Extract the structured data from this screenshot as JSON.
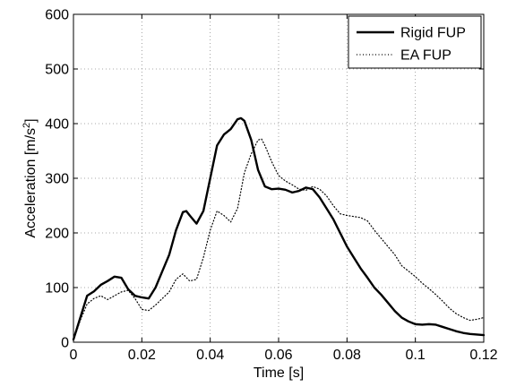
{
  "chart_data": {
    "type": "line",
    "xlabel": "Time [s]",
    "ylabel_main": "Acceleration [m/s",
    "ylabel_sup": "2",
    "ylabel_close": "]",
    "xlim": [
      0,
      0.12
    ],
    "ylim": [
      0,
      600
    ],
    "x_ticks": [
      0,
      0.02,
      0.04,
      0.06,
      0.08,
      0.1,
      0.12
    ],
    "x_tick_labels": [
      "0",
      "0.02",
      "0.04",
      "0.06",
      "0.08",
      "0.1",
      "0.12"
    ],
    "y_ticks": [
      0,
      100,
      200,
      300,
      400,
      500,
      600
    ],
    "y_tick_labels": [
      "0",
      "100",
      "200",
      "300",
      "400",
      "500",
      "600"
    ],
    "grid": true,
    "legend_position": "top-right",
    "series": [
      {
        "name": "Rigid FUP",
        "style": "solid",
        "color": "#000000",
        "x": [
          0,
          0.002,
          0.004,
          0.006,
          0.008,
          0.01,
          0.012,
          0.014,
          0.016,
          0.018,
          0.02,
          0.022,
          0.024,
          0.026,
          0.028,
          0.03,
          0.032,
          0.033,
          0.034,
          0.036,
          0.038,
          0.04,
          0.042,
          0.044,
          0.046,
          0.048,
          0.049,
          0.05,
          0.052,
          0.054,
          0.056,
          0.058,
          0.06,
          0.062,
          0.064,
          0.066,
          0.068,
          0.07,
          0.072,
          0.074,
          0.076,
          0.078,
          0.08,
          0.082,
          0.084,
          0.086,
          0.088,
          0.09,
          0.092,
          0.094,
          0.096,
          0.098,
          0.1,
          0.102,
          0.104,
          0.106,
          0.108,
          0.11,
          0.112,
          0.114,
          0.116,
          0.118,
          0.12
        ],
        "y": [
          5,
          45,
          85,
          93,
          105,
          112,
          120,
          118,
          97,
          85,
          82,
          80,
          100,
          130,
          160,
          205,
          238,
          240,
          232,
          217,
          240,
          300,
          360,
          380,
          390,
          408,
          410,
          405,
          370,
          315,
          285,
          280,
          281,
          279,
          274,
          277,
          283,
          280,
          265,
          245,
          225,
          200,
          175,
          155,
          135,
          118,
          100,
          87,
          72,
          57,
          45,
          38,
          33,
          32,
          33,
          32,
          28,
          24,
          20,
          17,
          15,
          14,
          13
        ]
      },
      {
        "name": "EA FUP",
        "style": "dotted",
        "color": "#000000",
        "x": [
          0,
          0.002,
          0.004,
          0.006,
          0.008,
          0.01,
          0.012,
          0.014,
          0.016,
          0.018,
          0.02,
          0.022,
          0.024,
          0.026,
          0.028,
          0.03,
          0.032,
          0.034,
          0.036,
          0.038,
          0.04,
          0.042,
          0.044,
          0.046,
          0.048,
          0.05,
          0.052,
          0.054,
          0.055,
          0.056,
          0.058,
          0.06,
          0.062,
          0.064,
          0.066,
          0.068,
          0.07,
          0.072,
          0.074,
          0.076,
          0.078,
          0.08,
          0.082,
          0.084,
          0.086,
          0.088,
          0.09,
          0.092,
          0.094,
          0.096,
          0.098,
          0.1,
          0.102,
          0.104,
          0.106,
          0.108,
          0.11,
          0.112,
          0.114,
          0.116,
          0.118,
          0.12
        ],
        "y": [
          3,
          40,
          70,
          80,
          85,
          78,
          85,
          92,
          95,
          80,
          60,
          58,
          68,
          80,
          92,
          115,
          125,
          112,
          115,
          155,
          205,
          240,
          232,
          220,
          245,
          310,
          345,
          370,
          372,
          360,
          330,
          305,
          295,
          288,
          280,
          278,
          285,
          280,
          268,
          250,
          235,
          232,
          230,
          228,
          222,
          205,
          190,
          175,
          160,
          140,
          130,
          120,
          108,
          98,
          87,
          75,
          62,
          52,
          45,
          40,
          42,
          45
        ]
      }
    ]
  }
}
